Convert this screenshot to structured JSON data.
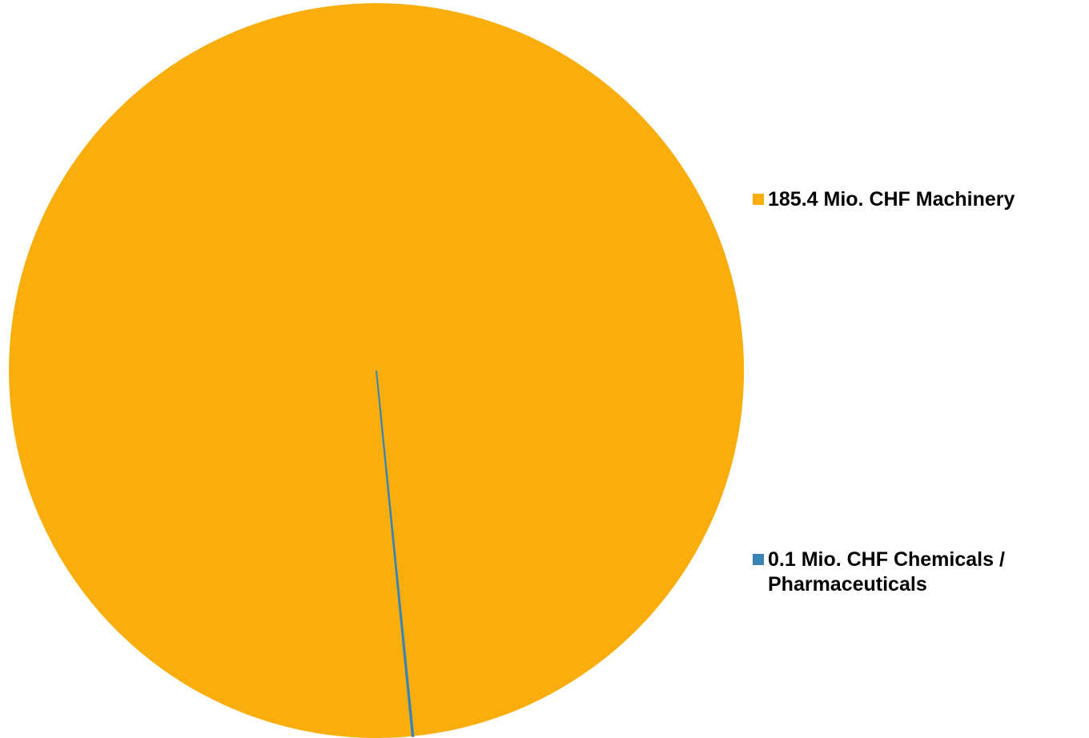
{
  "chart_data": {
    "type": "pie",
    "slices": [
      {
        "label": "185.4 Mio. CHF Machinery",
        "value": 185.4,
        "color": "#F9AE0E"
      },
      {
        "label": "0.1 Mio. CHF Chemicals / Pharmaceuticals",
        "value": 0.1,
        "color": "#3A84B4"
      }
    ],
    "legend_position": "right"
  },
  "legend": {
    "items": [
      {
        "label": "185.4 Mio. CHF Machinery",
        "color": "#F9AE0E"
      },
      {
        "label": "0.1 Mio. CHF Chemicals / Pharmaceuticals",
        "color": "#3A84B4"
      }
    ]
  }
}
